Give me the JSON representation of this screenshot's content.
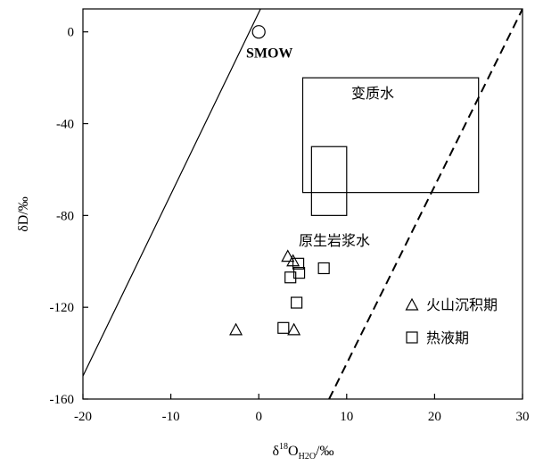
{
  "chart_data": {
    "type": "scatter",
    "xlabel": "δ18OH2O/‰",
    "xlabel_parts": {
      "delta": "δ",
      "sup": "18",
      "main": "O",
      "sub": "H2O",
      "unit": "/‰"
    },
    "ylabel": "δD/‰",
    "xlim": [
      -20,
      30
    ],
    "ylim": [
      -160,
      10
    ],
    "x_ticks": [
      -20,
      -10,
      0,
      10,
      20,
      30
    ],
    "y_ticks": [
      0,
      -40,
      -80,
      -120,
      -160
    ],
    "grid": false,
    "legend_position": "bottom-right",
    "legend": [
      {
        "marker": "triangle",
        "label": "火山沉积期"
      },
      {
        "marker": "square",
        "label": "热液期"
      }
    ],
    "series": [
      {
        "name": "火山沉积期",
        "marker": "triangle",
        "points": [
          {
            "x": -2.6,
            "y": -130
          },
          {
            "x": 3.3,
            "y": -98
          },
          {
            "x": 3.9,
            "y": -100
          },
          {
            "x": 4.0,
            "y": -130
          }
        ]
      },
      {
        "name": "热液期",
        "marker": "square",
        "points": [
          {
            "x": 3.6,
            "y": -107
          },
          {
            "x": 4.5,
            "y": -101
          },
          {
            "x": 4.6,
            "y": -105
          },
          {
            "x": 7.4,
            "y": -103
          },
          {
            "x": 2.8,
            "y": -129
          },
          {
            "x": 4.3,
            "y": -118
          }
        ]
      }
    ],
    "reference_points": [
      {
        "label": "SMOW",
        "x": 0,
        "y": 0,
        "marker": "circle"
      }
    ],
    "regions": [
      {
        "label": "变质水",
        "x_range": [
          5,
          25
        ],
        "y_range": [
          -70,
          -20
        ]
      },
      {
        "label": "原生岩浆水",
        "x_range": [
          6,
          10
        ],
        "y_range": [
          -80,
          -50
        ]
      }
    ],
    "lines": [
      {
        "name": "meteoric-water-line",
        "style": "solid",
        "from": [
          -20,
          -150
        ],
        "to": [
          0.2,
          10
        ]
      },
      {
        "name": "dashed-line",
        "style": "dashed",
        "from": [
          8,
          -160
        ],
        "to": [
          30,
          10
        ]
      }
    ]
  }
}
